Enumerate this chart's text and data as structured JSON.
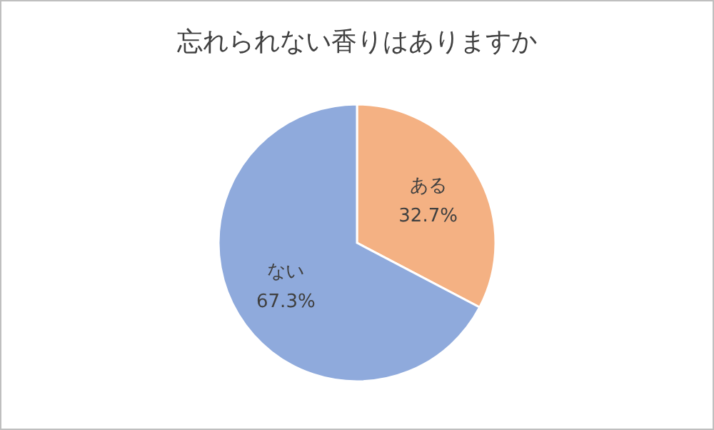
{
  "chart_data": {
    "type": "pie",
    "title": "忘れられない香りはありますか",
    "categories": [
      "ある",
      "ない"
    ],
    "values": [
      32.7,
      67.3
    ],
    "colors": [
      "#f4b183",
      "#8faadc"
    ],
    "value_labels": [
      "32.7%",
      "67.3%"
    ]
  }
}
